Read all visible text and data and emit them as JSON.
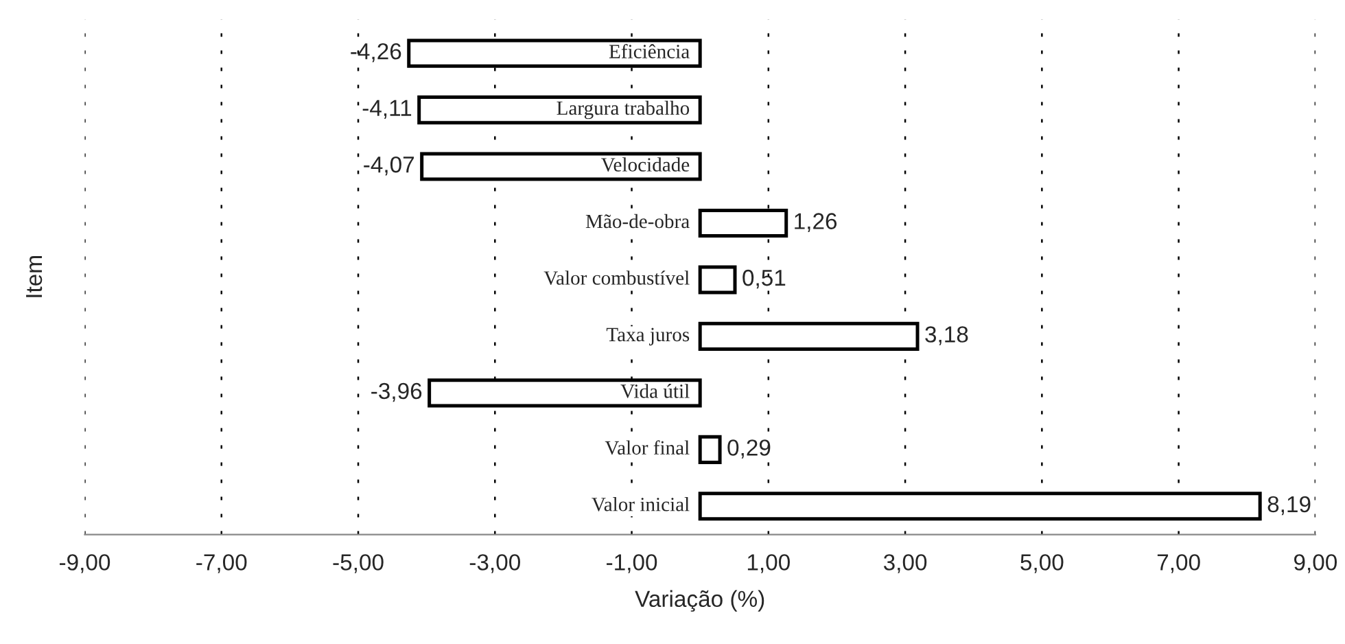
{
  "chart_data": {
    "type": "bar",
    "orientation": "horizontal",
    "xlabel": "Variação (%)",
    "ylabel": "Item",
    "categories": [
      "Eficiência",
      "Largura trabalho",
      "Velocidade",
      "Mão-de-obra",
      "Valor combustível",
      "Taxa juros",
      "Vida útil",
      "Valor final",
      "Valor inicial"
    ],
    "values": [
      -4.26,
      -4.11,
      -4.07,
      1.26,
      0.51,
      3.18,
      -3.96,
      0.29,
      8.19
    ],
    "value_labels": [
      "-4,26",
      "-4,11",
      "-4,07",
      "1,26",
      "0,51",
      "3,18",
      "-3,96",
      "0,29",
      "8,19"
    ],
    "color": "#ffffff",
    "xlim": [
      -9,
      9
    ],
    "xticks": [
      {
        "value": -9,
        "label": "-9,00"
      },
      {
        "value": -7,
        "label": "-7,00"
      },
      {
        "value": -5,
        "label": "-5,00"
      },
      {
        "value": -3,
        "label": "-3,00"
      },
      {
        "value": -1,
        "label": "-1,00"
      },
      {
        "value": 1,
        "label": "1,00"
      },
      {
        "value": 3,
        "label": "3,00"
      },
      {
        "value": 5,
        "label": "5,00"
      },
      {
        "value": 7,
        "label": "7,00"
      },
      {
        "value": 9,
        "label": "9,00"
      }
    ],
    "grid": "x"
  }
}
